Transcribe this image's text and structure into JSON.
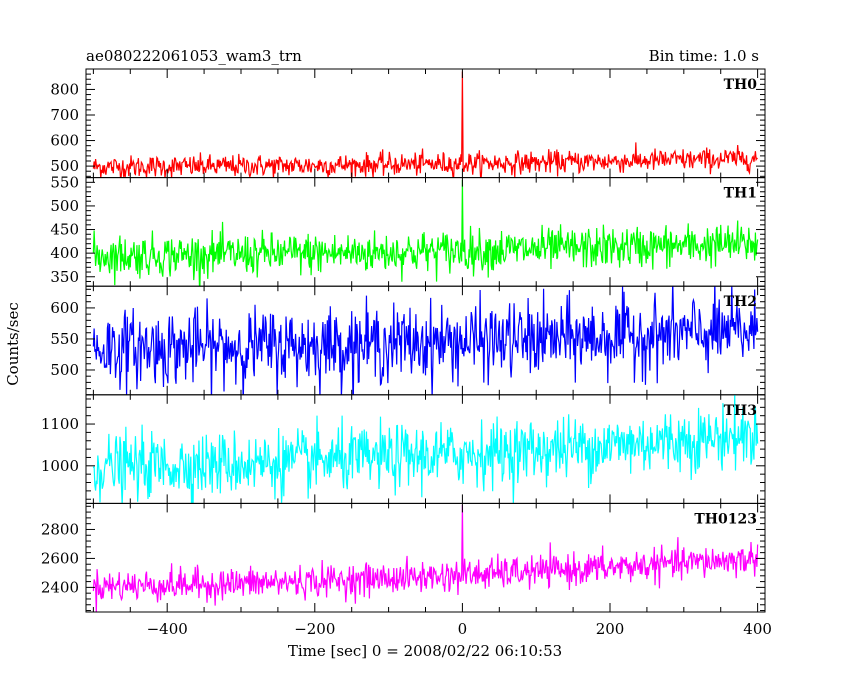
{
  "chart_data": {
    "type": "line",
    "title_left": "ae080222061053_wam3_trn",
    "title_right": "Bin time: 1.0 s",
    "xlabel": "Time [sec] 0 = 2008/02/22 06:10:53",
    "ylabel": "Counts/sec",
    "xlim": [
      -510,
      410
    ],
    "x_ticks": [
      -400,
      -200,
      0,
      200,
      400
    ],
    "x_tick_labels": [
      "−400",
      "−200",
      "0",
      "200",
      "400"
    ],
    "bin_time_s": 1.0,
    "x_start": -500,
    "x_end": 400,
    "grid": false,
    "panels": [
      {
        "label": "TH0",
        "color": "#ff0000",
        "ylim": [
          455,
          880
        ],
        "y_ticks": [
          500,
          600,
          700,
          800
        ],
        "y_tick_labels": [
          "500",
          "600",
          "700",
          "800"
        ],
        "baseline_start": 497,
        "baseline_end": 530,
        "noise": 22,
        "peak_time": 0,
        "peak_value": 870
      },
      {
        "label": "TH1",
        "color": "#00ff00",
        "ylim": [
          330,
          560
        ],
        "y_ticks": [
          350,
          400,
          450,
          500,
          550
        ],
        "y_tick_labels": [
          "350",
          "400",
          "450",
          "500",
          "550"
        ],
        "baseline_start": 395,
        "baseline_end": 420,
        "noise": 22,
        "peak_time": 0,
        "peak_value": 555
      },
      {
        "label": "TH2",
        "color": "#0000ff",
        "ylim": [
          460,
          635
        ],
        "y_ticks": [
          500,
          550,
          600
        ],
        "y_tick_labels": [
          "500",
          "550",
          "600"
        ],
        "baseline_start": 535,
        "baseline_end": 562,
        "noise": 30,
        "peak_time": null,
        "peak_value": null
      },
      {
        "label": "TH3",
        "color": "#00ffff",
        "ylim": [
          910,
          1170
        ],
        "y_ticks": [
          1000,
          1100
        ],
        "y_tick_labels": [
          "1000",
          "1100"
        ],
        "baseline_start": 998,
        "baseline_end": 1075,
        "noise": 38,
        "peak_time": null,
        "peak_value": null
      },
      {
        "label": "TH0123",
        "color": "#ff00ff",
        "ylim": [
          2230,
          2980
        ],
        "y_ticks": [
          2400,
          2600,
          2800
        ],
        "y_tick_labels": [
          "2400",
          "2600",
          "2800"
        ],
        "baseline_start": 2410,
        "baseline_end": 2600,
        "noise": 55,
        "peak_time": 0,
        "peak_value": 2970
      }
    ]
  }
}
